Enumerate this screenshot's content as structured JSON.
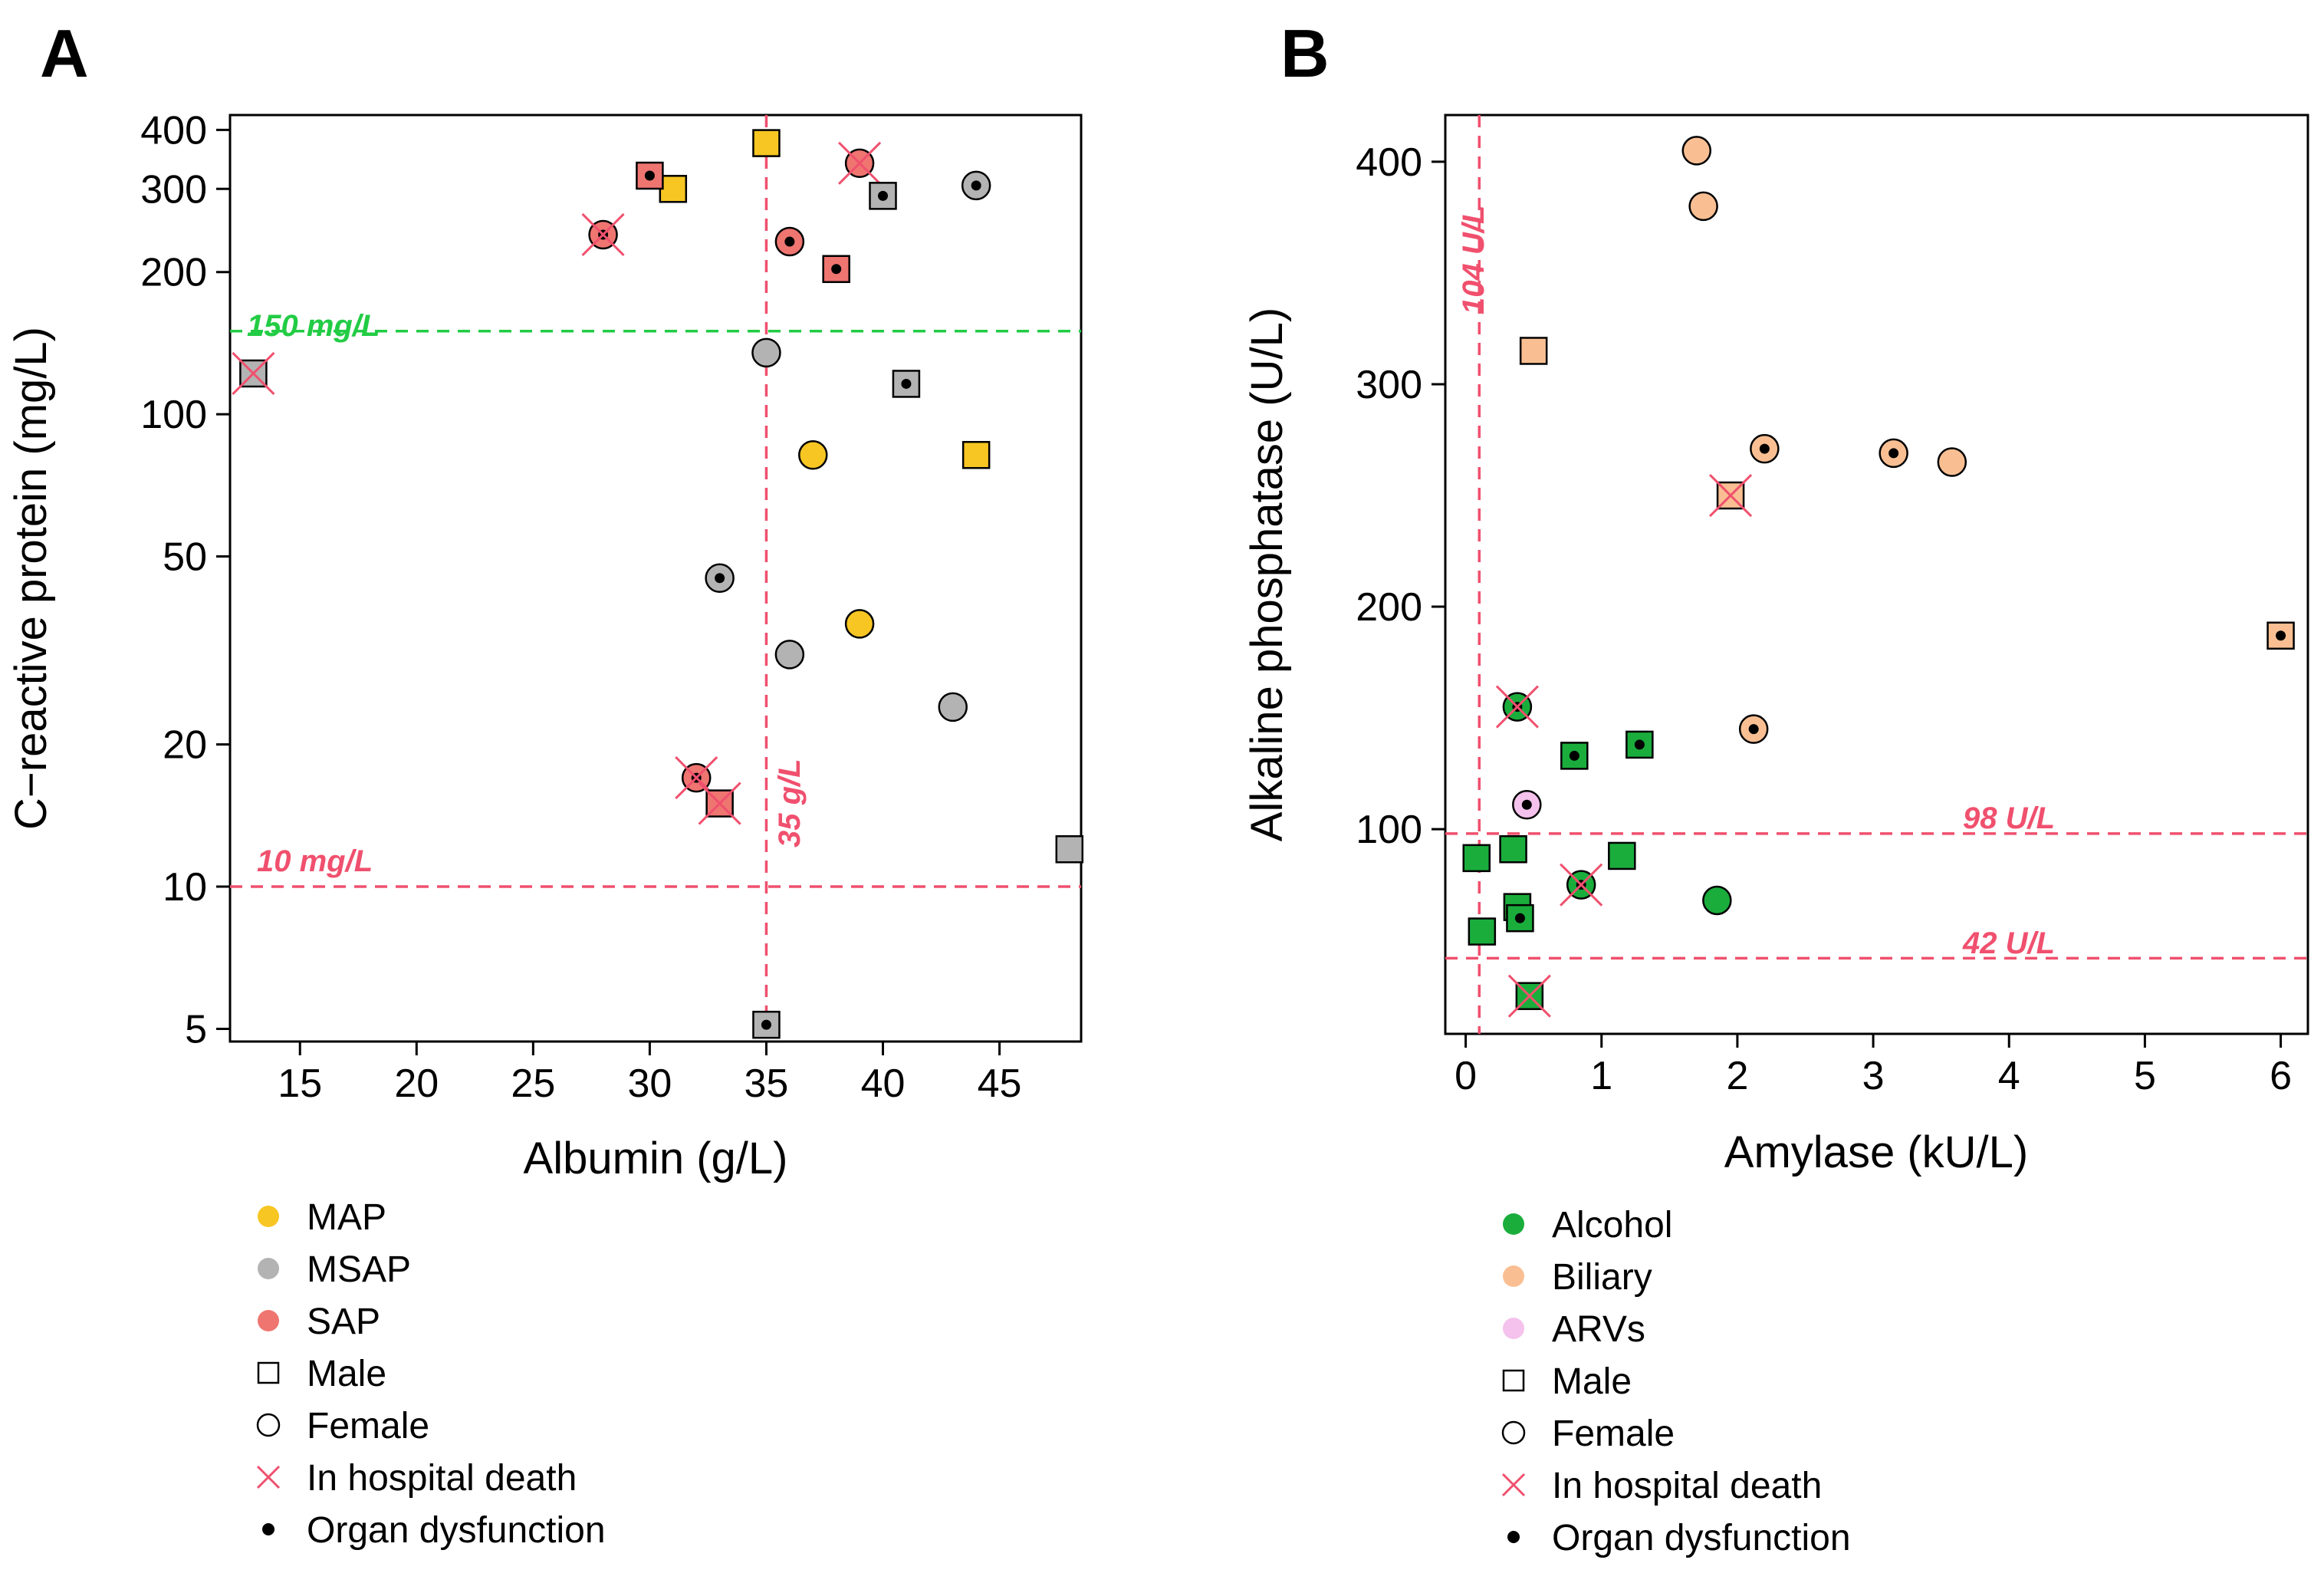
{
  "chart_data": [
    {
      "panel": "A",
      "type": "scatter",
      "xlabel": "Albumin (g/L)",
      "ylabel": "C−reactive protein (mg/L)",
      "yscale": "log",
      "xlim": [
        12,
        48.5
      ],
      "ylim": [
        4.7,
        430
      ],
      "xticks": [
        15,
        20,
        25,
        30,
        35,
        40,
        45
      ],
      "yticks": [
        5,
        10,
        20,
        50,
        100,
        200,
        300,
        400
      ],
      "reference_lines": [
        {
          "axis": "y",
          "value": 150,
          "label": "150 mg/L",
          "color": "#22cc44"
        },
        {
          "axis": "y",
          "value": 10,
          "label": "10 mg/L",
          "color": "#f0506e"
        },
        {
          "axis": "x",
          "value": 35,
          "label": "35 g/L",
          "color": "#f0506e"
        }
      ],
      "categories": {
        "MAP": "#f7c623",
        "MSAP": "#b3b3b3",
        "SAP": "#ef7570"
      },
      "points": [
        {
          "x": 35,
          "y": 375,
          "group": "MAP",
          "shape": "square",
          "organ": false,
          "death": false
        },
        {
          "x": 31,
          "y": 300,
          "group": "MAP",
          "shape": "square",
          "organ": false,
          "death": false
        },
        {
          "x": 30,
          "y": 320,
          "group": "SAP",
          "shape": "square",
          "organ": true,
          "death": false
        },
        {
          "x": 39,
          "y": 340,
          "group": "SAP",
          "shape": "circle",
          "organ": false,
          "death": true
        },
        {
          "x": 40,
          "y": 290,
          "group": "MSAP",
          "shape": "square",
          "organ": true,
          "death": false
        },
        {
          "x": 44,
          "y": 305,
          "group": "MSAP",
          "shape": "circle",
          "organ": true,
          "death": false
        },
        {
          "x": 28,
          "y": 240,
          "group": "SAP",
          "shape": "circle",
          "organ": true,
          "death": true
        },
        {
          "x": 36,
          "y": 232,
          "group": "SAP",
          "shape": "circle",
          "organ": true,
          "death": false
        },
        {
          "x": 38,
          "y": 203,
          "group": "SAP",
          "shape": "square",
          "organ": true,
          "death": false
        },
        {
          "x": 35,
          "y": 135,
          "group": "MSAP",
          "shape": "circle",
          "organ": false,
          "death": false
        },
        {
          "x": 13,
          "y": 122,
          "group": "MSAP",
          "shape": "square",
          "organ": false,
          "death": true
        },
        {
          "x": 41,
          "y": 116,
          "group": "MSAP",
          "shape": "square",
          "organ": true,
          "death": false
        },
        {
          "x": 37,
          "y": 82,
          "group": "MAP",
          "shape": "circle",
          "organ": false,
          "death": false
        },
        {
          "x": 44,
          "y": 82,
          "group": "MAP",
          "shape": "square",
          "organ": false,
          "death": false
        },
        {
          "x": 33,
          "y": 45,
          "group": "MSAP",
          "shape": "circle",
          "organ": true,
          "death": false
        },
        {
          "x": 39,
          "y": 36,
          "group": "MAP",
          "shape": "circle",
          "organ": false,
          "death": false
        },
        {
          "x": 36,
          "y": 31,
          "group": "MSAP",
          "shape": "circle",
          "organ": false,
          "death": false
        },
        {
          "x": 43,
          "y": 24,
          "group": "MSAP",
          "shape": "circle",
          "organ": false,
          "death": false
        },
        {
          "x": 32,
          "y": 17,
          "group": "SAP",
          "shape": "circle",
          "organ": true,
          "death": true
        },
        {
          "x": 33,
          "y": 15,
          "group": "SAP",
          "shape": "square",
          "organ": false,
          "death": true
        },
        {
          "x": 48,
          "y": 12,
          "group": "MSAP",
          "shape": "square",
          "organ": false,
          "death": false
        },
        {
          "x": 35,
          "y": 5.1,
          "group": "MSAP",
          "shape": "square",
          "organ": true,
          "death": false
        }
      ],
      "legend": [
        {
          "type": "dot",
          "color": "#f7c623",
          "label": "MAP"
        },
        {
          "type": "dot",
          "color": "#b3b3b3",
          "label": "MSAP"
        },
        {
          "type": "dot",
          "color": "#ef7570",
          "label": "SAP"
        },
        {
          "type": "square",
          "label": "Male"
        },
        {
          "type": "circle",
          "label": "Female"
        },
        {
          "type": "cross",
          "label": "In hospital death"
        },
        {
          "type": "small-dot",
          "label": "Organ dysfunction"
        }
      ]
    },
    {
      "panel": "B",
      "type": "scatter",
      "xlabel": "Amylase (kU/L)",
      "ylabel": "Alkaline phosphatase (U/L)",
      "yscale": "linear",
      "xlim": [
        -0.15,
        6.2
      ],
      "ylim": [
        8,
        421
      ],
      "xticks": [
        0,
        1,
        2,
        3,
        4,
        5,
        6
      ],
      "yticks": [
        100,
        200,
        300,
        400
      ],
      "reference_lines": [
        {
          "axis": "x",
          "value": 0.1,
          "label": "104 U/L",
          "color": "#f0506e"
        },
        {
          "axis": "y",
          "value": 98,
          "label": "98 U/L",
          "color": "#f0506e"
        },
        {
          "axis": "y",
          "value": 42,
          "label": "42 U/L",
          "color": "#f0506e"
        }
      ],
      "categories": {
        "Alcohol": "#1aad3c",
        "Biliary": "#f9bf93",
        "ARVs": "#f4c2ec"
      },
      "points": [
        {
          "x": 1.7,
          "y": 405,
          "group": "Biliary",
          "shape": "circle",
          "organ": false,
          "death": false
        },
        {
          "x": 1.75,
          "y": 380,
          "group": "Biliary",
          "shape": "circle",
          "organ": false,
          "death": false
        },
        {
          "x": 0.5,
          "y": 315,
          "group": "Biliary",
          "shape": "square",
          "organ": false,
          "death": false
        },
        {
          "x": 2.2,
          "y": 271,
          "group": "Biliary",
          "shape": "circle",
          "organ": true,
          "death": false
        },
        {
          "x": 3.15,
          "y": 269,
          "group": "Biliary",
          "shape": "circle",
          "organ": true,
          "death": false
        },
        {
          "x": 3.58,
          "y": 265,
          "group": "Biliary",
          "shape": "circle",
          "organ": false,
          "death": false
        },
        {
          "x": 1.95,
          "y": 250,
          "group": "Biliary",
          "shape": "square",
          "organ": false,
          "death": true
        },
        {
          "x": 6.0,
          "y": 187,
          "group": "Biliary",
          "shape": "square",
          "organ": true,
          "death": false
        },
        {
          "x": 0.38,
          "y": 155,
          "group": "Alcohol",
          "shape": "circle",
          "organ": true,
          "death": true
        },
        {
          "x": 2.12,
          "y": 145,
          "group": "Biliary",
          "shape": "circle",
          "organ": true,
          "death": false
        },
        {
          "x": 1.28,
          "y": 138,
          "group": "Alcohol",
          "shape": "square",
          "organ": true,
          "death": false
        },
        {
          "x": 0.8,
          "y": 133,
          "group": "Alcohol",
          "shape": "square",
          "organ": true,
          "death": false
        },
        {
          "x": 0.45,
          "y": 111,
          "group": "ARVs",
          "shape": "circle",
          "organ": true,
          "death": false
        },
        {
          "x": 0.35,
          "y": 91,
          "group": "Alcohol",
          "shape": "square",
          "organ": false,
          "death": false
        },
        {
          "x": 1.15,
          "y": 88,
          "group": "Alcohol",
          "shape": "square",
          "organ": false,
          "death": false
        },
        {
          "x": 0.08,
          "y": 87,
          "group": "Alcohol",
          "shape": "square",
          "organ": false,
          "death": false
        },
        {
          "x": 0.85,
          "y": 75,
          "group": "Alcohol",
          "shape": "circle",
          "organ": true,
          "death": true
        },
        {
          "x": 1.85,
          "y": 68,
          "group": "Alcohol",
          "shape": "circle",
          "organ": false,
          "death": false
        },
        {
          "x": 0.38,
          "y": 65,
          "group": "Alcohol",
          "shape": "square",
          "organ": false,
          "death": false
        },
        {
          "x": 0.4,
          "y": 60,
          "group": "Alcohol",
          "shape": "square",
          "organ": true,
          "death": false
        },
        {
          "x": 0.12,
          "y": 54,
          "group": "Alcohol",
          "shape": "square",
          "organ": false,
          "death": false
        },
        {
          "x": 0.47,
          "y": 25,
          "group": "Alcohol",
          "shape": "square",
          "organ": false,
          "death": true
        }
      ],
      "legend": [
        {
          "type": "dot",
          "color": "#1aad3c",
          "label": "Alcohol"
        },
        {
          "type": "dot",
          "color": "#f9bf93",
          "label": "Biliary"
        },
        {
          "type": "dot",
          "color": "#f4c2ec",
          "label": "ARVs"
        },
        {
          "type": "square",
          "label": "Male"
        },
        {
          "type": "circle",
          "label": "Female"
        },
        {
          "type": "cross",
          "label": "In hospital death"
        },
        {
          "type": "small-dot",
          "label": "Organ dysfunction"
        }
      ]
    }
  ]
}
